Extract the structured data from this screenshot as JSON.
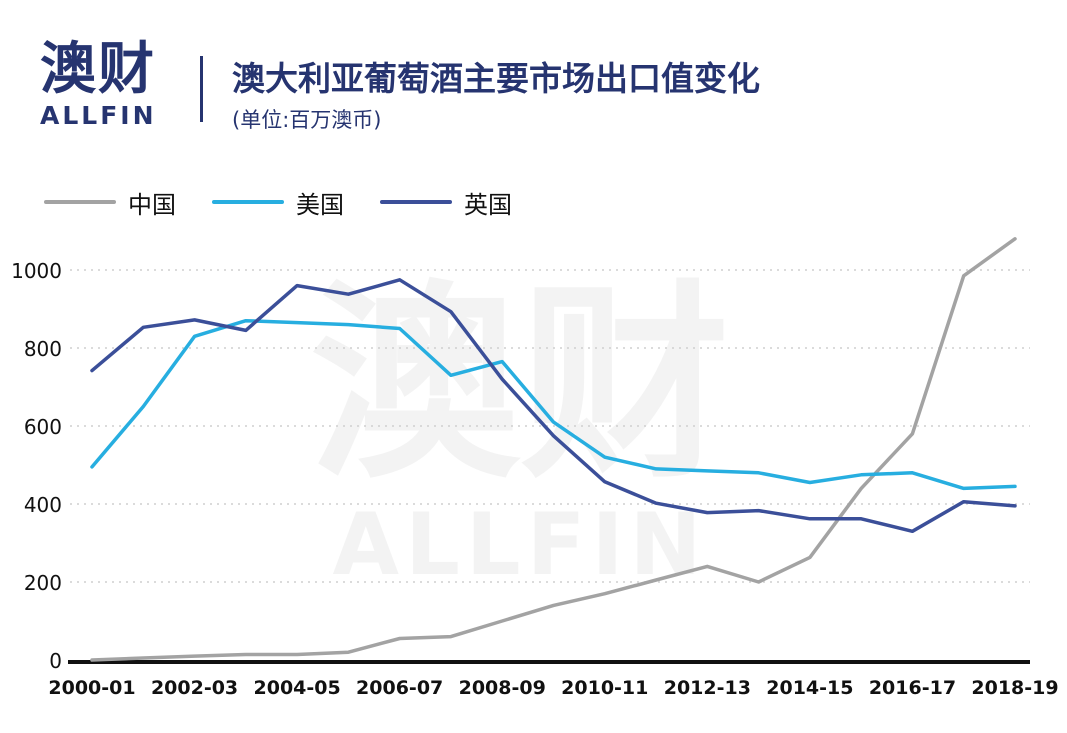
{
  "logo": {
    "cn": "澳财",
    "en": "ALLFIN"
  },
  "header": {
    "title": "澳大利亚葡萄酒主要市场出口值变化",
    "subtitle": "(单位:百万澳币)"
  },
  "watermark": {
    "cn": "澳财",
    "en": "ALLFIN"
  },
  "colors": {
    "china": "#a3a3a3",
    "usa": "#27aee0",
    "uk": "#3b4f99",
    "axis": "#111111",
    "brand": "#263470"
  },
  "chart_data": {
    "type": "line",
    "title": "澳大利亚葡萄酒主要市场出口值变化",
    "subtitle": "(单位:百万澳币)",
    "x": [
      "2000-01",
      "2001-02",
      "2002-03",
      "2003-04",
      "2004-05",
      "2005-06",
      "2006-07",
      "2007-08",
      "2008-09",
      "2009-10",
      "2010-11",
      "2011-12",
      "2012-13",
      "2013-14",
      "2014-15",
      "2015-16",
      "2016-17",
      "2017-18",
      "2018-19"
    ],
    "x_tick_labels": [
      "2000-01",
      "2002-03",
      "2004-05",
      "2006-07",
      "2008-09",
      "2010-11",
      "2012-13",
      "2014-15",
      "2016-17",
      "2018-19"
    ],
    "y_ticks": [
      0,
      200,
      400,
      600,
      800,
      1000
    ],
    "ylim": [
      0,
      1100
    ],
    "grid": "horizontal-dotted",
    "legend_position": "top-left",
    "series": [
      {
        "name": "中国",
        "color": "#a3a3a3",
        "values": [
          0,
          5,
          10,
          14,
          14,
          20,
          55,
          60,
          100,
          140,
          170,
          205,
          240,
          200,
          263,
          440,
          580,
          985,
          1080
        ]
      },
      {
        "name": "美国",
        "color": "#27aee0",
        "values": [
          495,
          650,
          830,
          870,
          865,
          860,
          850,
          730,
          765,
          610,
          520,
          490,
          485,
          480,
          455,
          475,
          480,
          440,
          445
        ]
      },
      {
        "name": "英国",
        "color": "#3b4f99",
        "values": [
          742,
          853,
          872,
          845,
          960,
          938,
          975,
          893,
          720,
          575,
          457,
          402,
          378,
          383,
          362,
          362,
          330,
          406,
          395
        ]
      }
    ]
  }
}
